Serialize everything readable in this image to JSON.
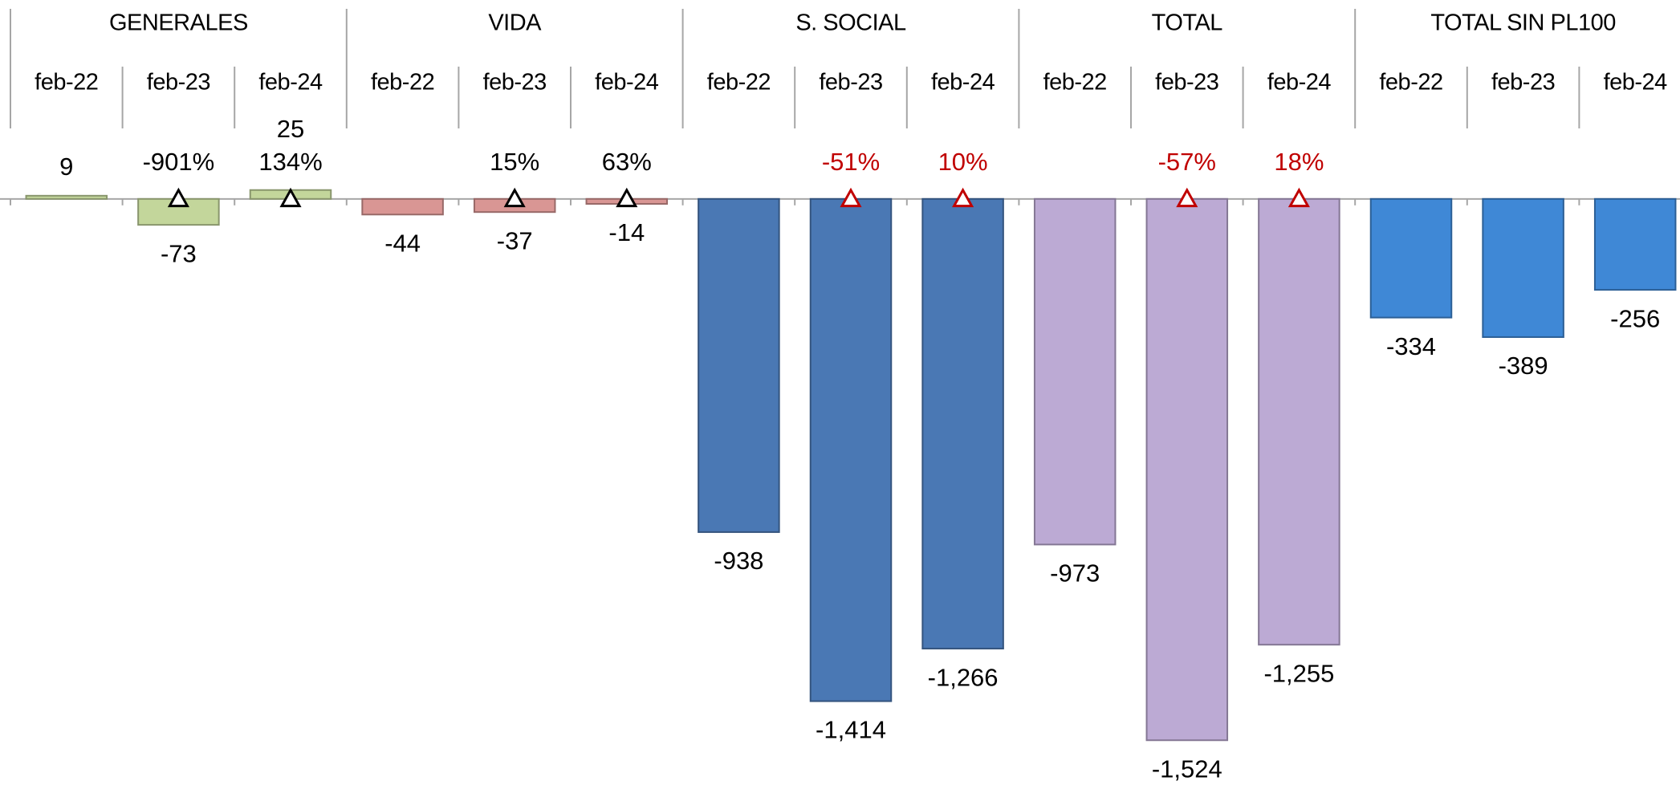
{
  "chart_data": {
    "type": "bar",
    "periods": [
      "feb-22",
      "feb-23",
      "feb-24"
    ],
    "ylim": [
      -1650,
      560
    ],
    "groups": [
      {
        "name": "GENERALES",
        "color": "#c3d69b",
        "values": [
          9,
          -73,
          25
        ],
        "changes": [
          null,
          -901,
          134
        ],
        "change_labels": [
          null,
          "-901%",
          "134%"
        ],
        "change_color": "#000000"
      },
      {
        "name": "VIDA",
        "color": "#d99694",
        "values": [
          -44,
          -37,
          -14
        ],
        "changes": [
          null,
          15,
          63
        ],
        "change_labels": [
          null,
          "15%",
          "63%"
        ],
        "change_color": "#000000"
      },
      {
        "name": "S. SOCIAL",
        "color": "#4a78b4",
        "values": [
          -938,
          -1414,
          -1266
        ],
        "value_labels": [
          "-938",
          "-1,414",
          "-1,266"
        ],
        "changes": [
          null,
          -51,
          10
        ],
        "change_labels": [
          null,
          "-51%",
          "10%"
        ],
        "change_color": "#c00000"
      },
      {
        "name": "TOTAL",
        "color": "#bcaad4",
        "values": [
          -973,
          -1524,
          -1255
        ],
        "value_labels": [
          "-973",
          "-1,524",
          "-1,255"
        ],
        "changes": [
          null,
          -57,
          18
        ],
        "change_labels": [
          null,
          "-57%",
          "18%"
        ],
        "change_color": "#c00000"
      },
      {
        "name": "TOTAL SIN PL100",
        "color": "#3f88d6",
        "values": [
          -334,
          -389,
          -256
        ]
      }
    ]
  }
}
